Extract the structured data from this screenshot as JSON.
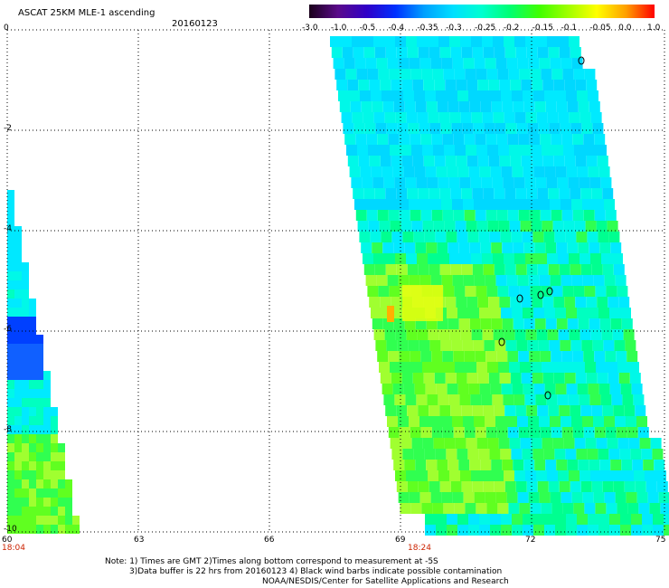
{
  "header": {
    "title": "ASCAT 25KM MLE-1 ascending",
    "date": "20160123"
  },
  "legend": {
    "labels": [
      "-3.0",
      "-1.0",
      "-0.5",
      "-0.4",
      "-0.35",
      "-0.3",
      "-0.25",
      "-0.2",
      "-0.15",
      "-0.1",
      "-0.05",
      "0.0",
      "1.0"
    ],
    "colors": [
      "#1a001a",
      "#5a0a8a",
      "#3000c8",
      "#0030ff",
      "#00a0ff",
      "#00e0ff",
      "#00ffd0",
      "#00ff70",
      "#40ff00",
      "#a0ff00",
      "#ffff00",
      "#ffa000",
      "#ff0000"
    ]
  },
  "axes": {
    "y_labels": [
      "0",
      "-2",
      "-4",
      "-6",
      "-8",
      "-10"
    ],
    "x_labels": [
      "60",
      "63",
      "66",
      "69",
      "72",
      "75"
    ],
    "times": [
      "18:04",
      "18:24"
    ]
  },
  "footer": {
    "line1": "Note: 1) Times are GMT 2)Times along bottom correspond to measurement at -5S",
    "line2": "3)Data buffer is 22 hrs from 20160123 4) Black wind barbs indicate possible contamination",
    "line3": "NOAA/NESDIS/Center for Satellite Applications and Research"
  }
}
